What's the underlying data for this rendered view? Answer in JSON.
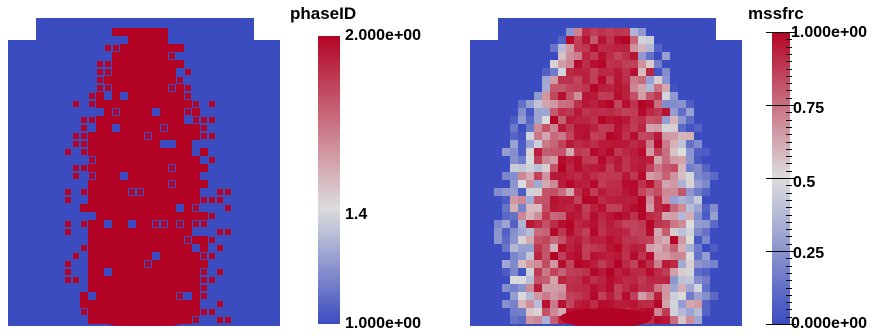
{
  "left_panel": {
    "colorbar_title": "phaseID",
    "colorbar_labels": {
      "max": "2.000e+00",
      "mid": "1.4",
      "min": "1.000e+00"
    }
  },
  "right_panel": {
    "colorbar_title": "mssfrc",
    "colorbar_labels": {
      "max": "1.000e+00",
      "q3": "0.75",
      "mid": "0.5",
      "q1": "0.25",
      "min": "0.000e+00"
    }
  },
  "colors": {
    "low": "#3b4cc0",
    "mid": "#dddddd",
    "high": "#b40426"
  }
}
